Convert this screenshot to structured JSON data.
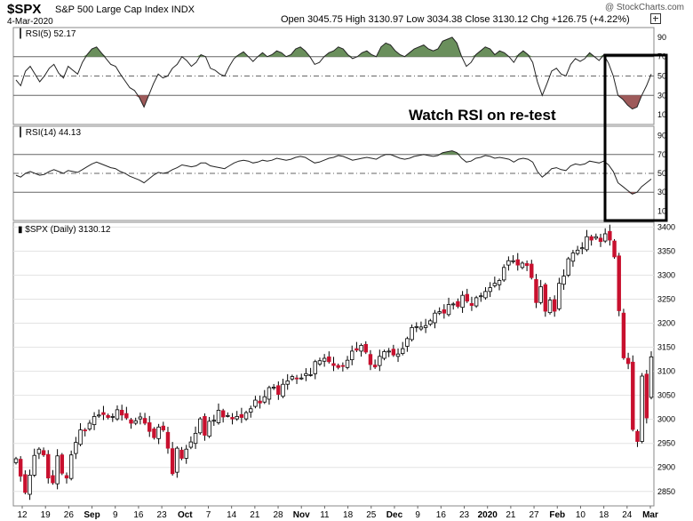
{
  "header": {
    "symbol": "$SPX",
    "name": "S&P 500 Large Cap Index",
    "exchange": "INDX",
    "date": "4-Mar-2020",
    "quote": "Open 3045.75  High 3130.97  Low 3034.38  Close 3130.12  Chg +126.75 (+4.22%)",
    "brand": "@ StockCharts.com"
  },
  "annotation": "Watch RSI on re-test",
  "colors": {
    "up_candle": "#ffffff",
    "down_candle": "#c8102e",
    "overbought_fill": "#6a8f5c",
    "oversold_fill": "#9e5a5a",
    "highlight_box": "#000000"
  },
  "chart_data": [
    {
      "type": "line",
      "title": "RSI(5) 52.17",
      "ylim": [
        0,
        100
      ],
      "yticks": [
        10,
        30,
        50,
        70,
        90
      ],
      "reference_lines": [
        30,
        50,
        70
      ],
      "values": [
        46,
        40,
        55,
        60,
        52,
        44,
        50,
        58,
        62,
        53,
        48,
        60,
        56,
        52,
        64,
        72,
        78,
        80,
        74,
        68,
        62,
        60,
        52,
        45,
        38,
        35,
        28,
        18,
        30,
        42,
        52,
        48,
        50,
        58,
        62,
        70,
        66,
        60,
        64,
        72,
        70,
        58,
        56,
        52,
        50,
        60,
        68,
        72,
        75,
        70,
        65,
        70,
        74,
        70,
        72,
        76,
        74,
        70,
        72,
        78,
        80,
        76,
        70,
        62,
        64,
        70,
        74,
        76,
        80,
        78,
        72,
        68,
        70,
        74,
        76,
        72,
        70,
        80,
        84,
        82,
        76,
        72,
        70,
        74,
        78,
        80,
        82,
        78,
        76,
        78,
        86,
        88,
        90,
        84,
        70,
        60,
        64,
        72,
        76,
        80,
        78,
        72,
        76,
        74,
        70,
        64,
        72,
        76,
        72,
        64,
        44,
        30,
        42,
        55,
        58,
        52,
        50,
        62,
        68,
        65,
        68,
        74,
        70,
        66,
        72,
        63,
        50,
        30,
        26,
        20,
        16,
        18,
        30,
        40,
        52
      ]
    },
    {
      "type": "line",
      "title": "RSI(14) 44.13",
      "ylim": [
        0,
        100
      ],
      "yticks": [
        10,
        30,
        50,
        70,
        90
      ],
      "reference_lines": [
        30,
        50,
        70
      ],
      "values": [
        48,
        46,
        50,
        52,
        50,
        48,
        49,
        52,
        54,
        52,
        50,
        53,
        52,
        51,
        54,
        57,
        60,
        62,
        60,
        58,
        56,
        55,
        52,
        50,
        47,
        45,
        43,
        40,
        44,
        48,
        51,
        50,
        51,
        54,
        56,
        59,
        58,
        57,
        58,
        61,
        61,
        58,
        57,
        56,
        55,
        58,
        61,
        63,
        64,
        63,
        61,
        62,
        64,
        63,
        64,
        66,
        65,
        64,
        65,
        67,
        68,
        67,
        64,
        61,
        62,
        64,
        66,
        67,
        69,
        68,
        66,
        64,
        65,
        66,
        67,
        66,
        65,
        68,
        70,
        70,
        68,
        66,
        65,
        66,
        68,
        69,
        70,
        69,
        68,
        69,
        72,
        73,
        74,
        72,
        66,
        62,
        63,
        66,
        67,
        69,
        68,
        66,
        67,
        66,
        65,
        62,
        65,
        66,
        65,
        62,
        52,
        46,
        50,
        55,
        56,
        54,
        53,
        58,
        60,
        59,
        60,
        63,
        62,
        61,
        63,
        59,
        52,
        40,
        36,
        32,
        28,
        30,
        36,
        40,
        44
      ]
    },
    {
      "type": "candlestick",
      "title": "$SPX (Daily) 3130.12",
      "ylim": [
        2820,
        3410
      ],
      "yticks": [
        2850,
        2900,
        2950,
        3000,
        3050,
        3100,
        3150,
        3200,
        3250,
        3300,
        3350,
        3400
      ],
      "xticks": [
        "12",
        "19",
        "26",
        "Sep",
        "9",
        "16",
        "23",
        "Oct",
        "7",
        "14",
        "21",
        "28",
        "Nov",
        "11",
        "18",
        "25",
        "Dec",
        "9",
        "16",
        "23",
        "2020",
        "21",
        "27",
        "Feb",
        "10",
        "18",
        "24",
        "Mar"
      ],
      "close": [
        2918,
        2882,
        2848,
        2884,
        2925,
        2938,
        2926,
        2878,
        2868,
        2924,
        2888,
        2878,
        2926,
        2952,
        2978,
        2976,
        2992,
        3006,
        3009,
        3010,
        3004,
        3006,
        3020,
        3009,
        3003,
        2992,
        2997,
        3005,
        2992,
        2975,
        2962,
        2984,
        2978,
        2940,
        2887,
        2940,
        2919,
        2938,
        2953,
        2971,
        3001,
        2967,
        2996,
        2998,
        3019,
        3005,
        3008,
        3001,
        3006,
        3004,
        3014,
        3022,
        3040,
        3034,
        3047,
        3066,
        3067,
        3052,
        3073,
        3080,
        3089,
        3085,
        3086,
        3095,
        3093,
        3120,
        3122,
        3127,
        3120,
        3112,
        3108,
        3111,
        3123,
        3142,
        3144,
        3154,
        3140,
        3114,
        3109,
        3131,
        3141,
        3142,
        3134,
        3136,
        3147,
        3168,
        3191,
        3193,
        3192,
        3195,
        3205,
        3221,
        3224,
        3221,
        3239,
        3240,
        3235,
        3258,
        3246,
        3237,
        3253,
        3257,
        3266,
        3274,
        3283,
        3289,
        3316,
        3330,
        3330,
        3321,
        3325,
        3320,
        3295,
        3243,
        3276,
        3225,
        3248,
        3225,
        3283,
        3298,
        3334,
        3346,
        3352,
        3357,
        3380,
        3373,
        3380,
        3370,
        3386,
        3373,
        3338,
        3226,
        3128,
        3116,
        2979,
        2954,
        3090,
        3003,
        3130
      ]
    }
  ]
}
